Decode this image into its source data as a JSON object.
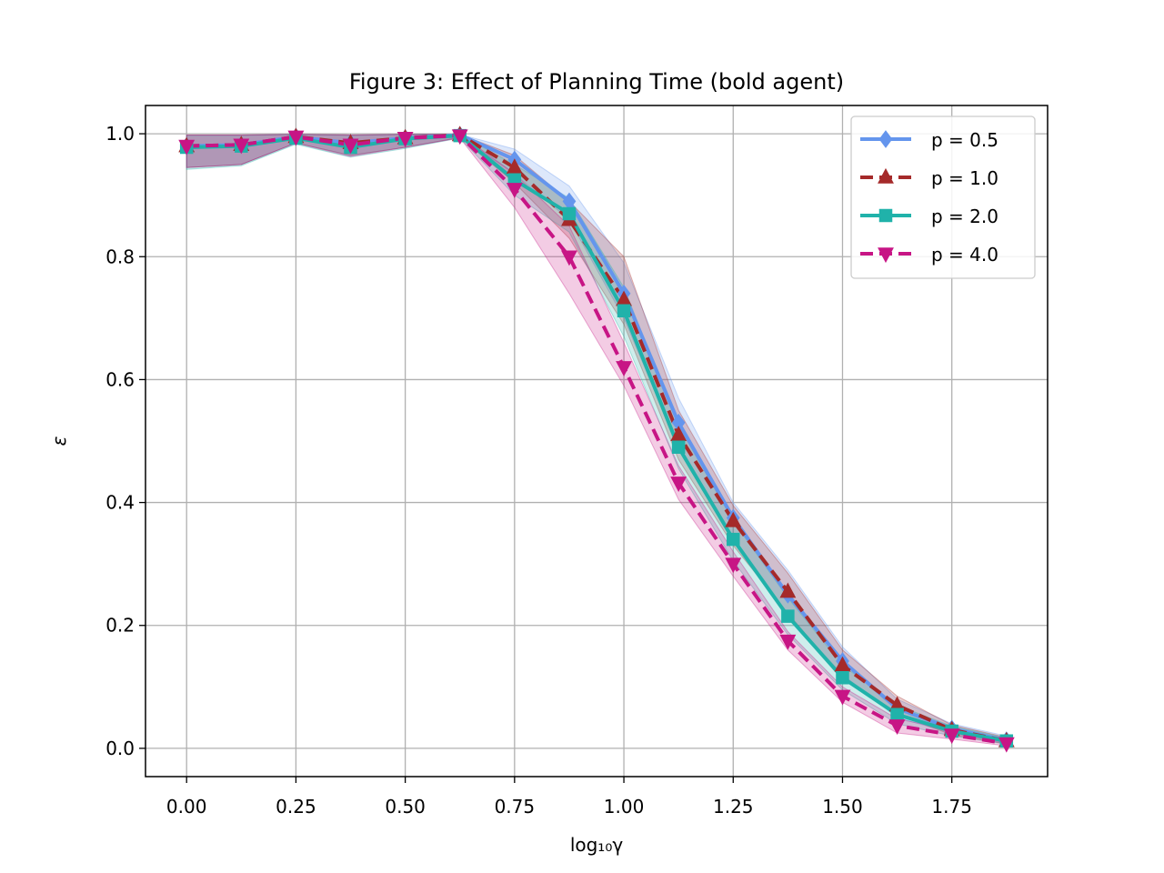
{
  "chart_data": {
    "type": "line",
    "title": "Figure 3: Effect of Planning Time (bold agent)",
    "xlabel": "log₁₀γ",
    "ylabel": "ε",
    "xlim": [
      -0.094,
      1.969
    ],
    "ylim": [
      -0.046,
      1.046
    ],
    "xticks": [
      "0.00",
      "0.25",
      "0.50",
      "0.75",
      "1.00",
      "1.25",
      "1.50",
      "1.75"
    ],
    "yticks": [
      "0.0",
      "0.2",
      "0.4",
      "0.6",
      "0.8",
      "1.0"
    ],
    "grid": true,
    "legend_position": "top-right",
    "x": [
      0.0,
      0.125,
      0.25,
      0.375,
      0.5,
      0.625,
      0.75,
      0.875,
      1.0,
      1.125,
      1.25,
      1.375,
      1.5,
      1.625,
      1.75,
      1.875
    ],
    "series": [
      {
        "name": "p = 0.5",
        "color": "#6495ed",
        "linestyle": "solid",
        "marker": "diamond",
        "values": [
          0.98,
          0.982,
          0.995,
          0.985,
          0.993,
          0.998,
          0.958,
          0.89,
          0.74,
          0.53,
          0.375,
          0.25,
          0.142,
          0.065,
          0.032,
          0.013
        ],
        "lower": [
          0.945,
          0.95,
          0.985,
          0.965,
          0.978,
          0.994,
          0.935,
          0.86,
          0.7,
          0.49,
          0.34,
          0.215,
          0.12,
          0.05,
          0.025,
          0.008
        ],
        "upper": [
          0.998,
          0.998,
          0.999,
          0.998,
          0.999,
          0.999,
          0.975,
          0.915,
          0.79,
          0.57,
          0.4,
          0.29,
          0.165,
          0.08,
          0.04,
          0.02
        ]
      },
      {
        "name": "p = 1.0",
        "color": "#a52a2a",
        "linestyle": "dashed",
        "marker": "triangle-up",
        "values": [
          0.98,
          0.982,
          0.995,
          0.985,
          0.993,
          0.998,
          0.945,
          0.86,
          0.73,
          0.51,
          0.37,
          0.255,
          0.135,
          0.07,
          0.03,
          0.012
        ],
        "lower": [
          0.945,
          0.95,
          0.985,
          0.965,
          0.978,
          0.994,
          0.92,
          0.83,
          0.69,
          0.47,
          0.33,
          0.22,
          0.115,
          0.055,
          0.022,
          0.007
        ],
        "upper": [
          0.998,
          0.998,
          0.999,
          0.998,
          0.999,
          0.999,
          0.965,
          0.89,
          0.8,
          0.55,
          0.395,
          0.285,
          0.16,
          0.085,
          0.038,
          0.018
        ]
      },
      {
        "name": "p = 2.0",
        "color": "#20b2aa",
        "linestyle": "solid",
        "marker": "square",
        "values": [
          0.978,
          0.98,
          0.993,
          0.978,
          0.992,
          0.997,
          0.925,
          0.87,
          0.712,
          0.49,
          0.34,
          0.215,
          0.115,
          0.055,
          0.028,
          0.012
        ],
        "lower": [
          0.942,
          0.948,
          0.983,
          0.962,
          0.976,
          0.993,
          0.9,
          0.84,
          0.67,
          0.455,
          0.305,
          0.185,
          0.095,
          0.04,
          0.02,
          0.007
        ],
        "upper": [
          0.997,
          0.997,
          0.999,
          0.997,
          0.999,
          0.999,
          0.95,
          0.895,
          0.75,
          0.525,
          0.37,
          0.245,
          0.135,
          0.07,
          0.036,
          0.017
        ]
      },
      {
        "name": "p = 4.0",
        "color": "#c71585",
        "linestyle": "dashed",
        "marker": "triangle-down",
        "values": [
          0.98,
          0.982,
          0.995,
          0.982,
          0.993,
          0.997,
          0.91,
          0.8,
          0.62,
          0.432,
          0.3,
          0.175,
          0.085,
          0.037,
          0.022,
          0.008
        ],
        "lower": [
          0.945,
          0.95,
          0.985,
          0.963,
          0.978,
          0.993,
          0.88,
          0.74,
          0.59,
          0.405,
          0.28,
          0.16,
          0.075,
          0.025,
          0.015,
          0.004
        ],
        "upper": [
          0.998,
          0.998,
          0.999,
          0.998,
          0.999,
          0.999,
          0.935,
          0.85,
          0.66,
          0.46,
          0.32,
          0.19,
          0.1,
          0.048,
          0.03,
          0.013
        ]
      }
    ]
  }
}
